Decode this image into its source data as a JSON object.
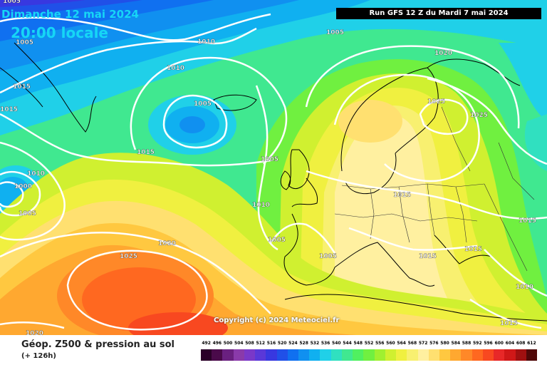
{
  "map": {
    "date": "Dimanche 12 mai 2024",
    "local_time": "20:00 locale",
    "run_info": "Run GFS 12 Z du Mardi 7 mai 2024",
    "copyright": "Copyright (c) 2024 Meteociel.fr",
    "parameter": "Géop. Z500 & pression au sol",
    "lead_time": "(+ 126h)"
  },
  "legend": {
    "values": [
      "492",
      "496",
      "500",
      "504",
      "508",
      "512",
      "516",
      "520",
      "524",
      "528",
      "532",
      "536",
      "540",
      "544",
      "548",
      "552",
      "556",
      "560",
      "564",
      "568",
      "572",
      "576",
      "580",
      "584",
      "588",
      "592",
      "596",
      "600",
      "604",
      "608",
      "612"
    ],
    "colors": [
      "#2a0028",
      "#4a0a4a",
      "#6a2080",
      "#8a3aaa",
      "#7a38c8",
      "#5a38d8",
      "#3838e0",
      "#2050e8",
      "#1070f0",
      "#1090f0",
      "#10b0f0",
      "#20d0e8",
      "#30e0c0",
      "#40e890",
      "#50f060",
      "#70f040",
      "#a0f030",
      "#d0f030",
      "#f0f040",
      "#f8f070",
      "#fff0a0",
      "#ffe070",
      "#ffc840",
      "#ffa830",
      "#ff8828",
      "#ff6820",
      "#f84820",
      "#e82828",
      "#d01818",
      "#a01010",
      "#500808"
    ]
  },
  "isobars": [
    {
      "label": "1005"
    },
    {
      "label": "1005"
    },
    {
      "label": "1010"
    },
    {
      "label": "1015"
    },
    {
      "label": "1020"
    },
    {
      "label": "1025"
    },
    {
      "label": "1020"
    },
    {
      "label": "1015"
    },
    {
      "label": "1010"
    },
    {
      "label": "1005"
    },
    {
      "label": "1005"
    },
    {
      "label": "1010"
    },
    {
      "label": "1000"
    },
    {
      "label": "1005"
    },
    {
      "label": "1015"
    },
    {
      "label": "1005"
    },
    {
      "label": "1010"
    },
    {
      "label": "1005"
    },
    {
      "label": "1020"
    },
    {
      "label": "1025"
    },
    {
      "label": "1025"
    },
    {
      "label": "1015"
    },
    {
      "label": "1015"
    },
    {
      "label": "1015"
    },
    {
      "label": "1015"
    },
    {
      "label": "1010"
    },
    {
      "label": "1015"
    },
    {
      "label": "1005"
    },
    {
      "label": "1020"
    },
    {
      "label": "1010"
    },
    {
      "label": "1015"
    },
    {
      "label": "1005"
    }
  ]
}
